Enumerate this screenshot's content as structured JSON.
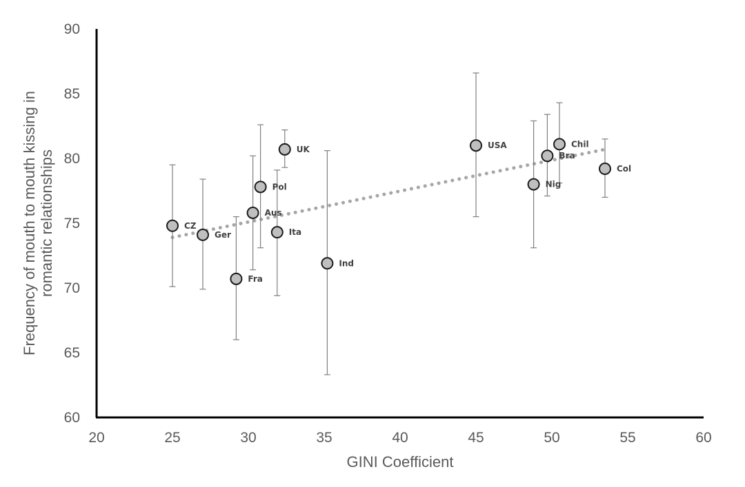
{
  "chart_data": {
    "type": "scatter",
    "title": "",
    "xlabel": "GINI Coefficient",
    "ylabel_lines": [
      "Frequency of mouth to mouth kissing in",
      "romantic relationships"
    ],
    "xlim": [
      20,
      60
    ],
    "ylim": [
      60,
      90
    ],
    "xticks": [
      "20",
      "25",
      "30",
      "35",
      "40",
      "45",
      "50",
      "55",
      "60"
    ],
    "yticks": [
      "60",
      "65",
      "70",
      "75",
      "80",
      "85",
      "90"
    ],
    "grid": false,
    "legend": "none",
    "trendline": {
      "type": "linear",
      "x": [
        25,
        53.5
      ],
      "y": [
        73.9,
        80.7
      ]
    },
    "points": [
      {
        "label": "CZ",
        "x": 25.0,
        "y": 74.8,
        "err_low": 70.1,
        "err_high": 79.5
      },
      {
        "label": "Ger",
        "x": 27.0,
        "y": 74.1,
        "err_low": 69.9,
        "err_high": 78.4
      },
      {
        "label": "Fra",
        "x": 29.2,
        "y": 70.7,
        "err_low": 66.0,
        "err_high": 75.5
      },
      {
        "label": "Aus",
        "x": 30.3,
        "y": 75.8,
        "err_low": 71.4,
        "err_high": 80.2
      },
      {
        "label": "Pol",
        "x": 30.8,
        "y": 77.8,
        "err_low": 73.1,
        "err_high": 82.6
      },
      {
        "label": "Ita",
        "x": 31.9,
        "y": 74.3,
        "err_low": 69.4,
        "err_high": 79.1
      },
      {
        "label": "UK",
        "x": 32.4,
        "y": 80.7,
        "err_low": 79.3,
        "err_high": 82.2
      },
      {
        "label": "Ind",
        "x": 35.2,
        "y": 71.9,
        "err_low": 63.3,
        "err_high": 80.6
      },
      {
        "label": "USA",
        "x": 45.0,
        "y": 81.0,
        "err_low": 75.5,
        "err_high": 86.6
      },
      {
        "label": "Nig",
        "x": 48.8,
        "y": 78.0,
        "err_low": 73.1,
        "err_high": 82.9
      },
      {
        "label": "Bra",
        "x": 49.7,
        "y": 80.2,
        "err_low": 77.1,
        "err_high": 83.4
      },
      {
        "label": "Chil",
        "x": 50.5,
        "y": 81.1,
        "err_low": 78.1,
        "err_high": 84.3
      },
      {
        "label": "Col",
        "x": 53.5,
        "y": 79.2,
        "err_low": 77.0,
        "err_high": 81.5
      }
    ]
  }
}
